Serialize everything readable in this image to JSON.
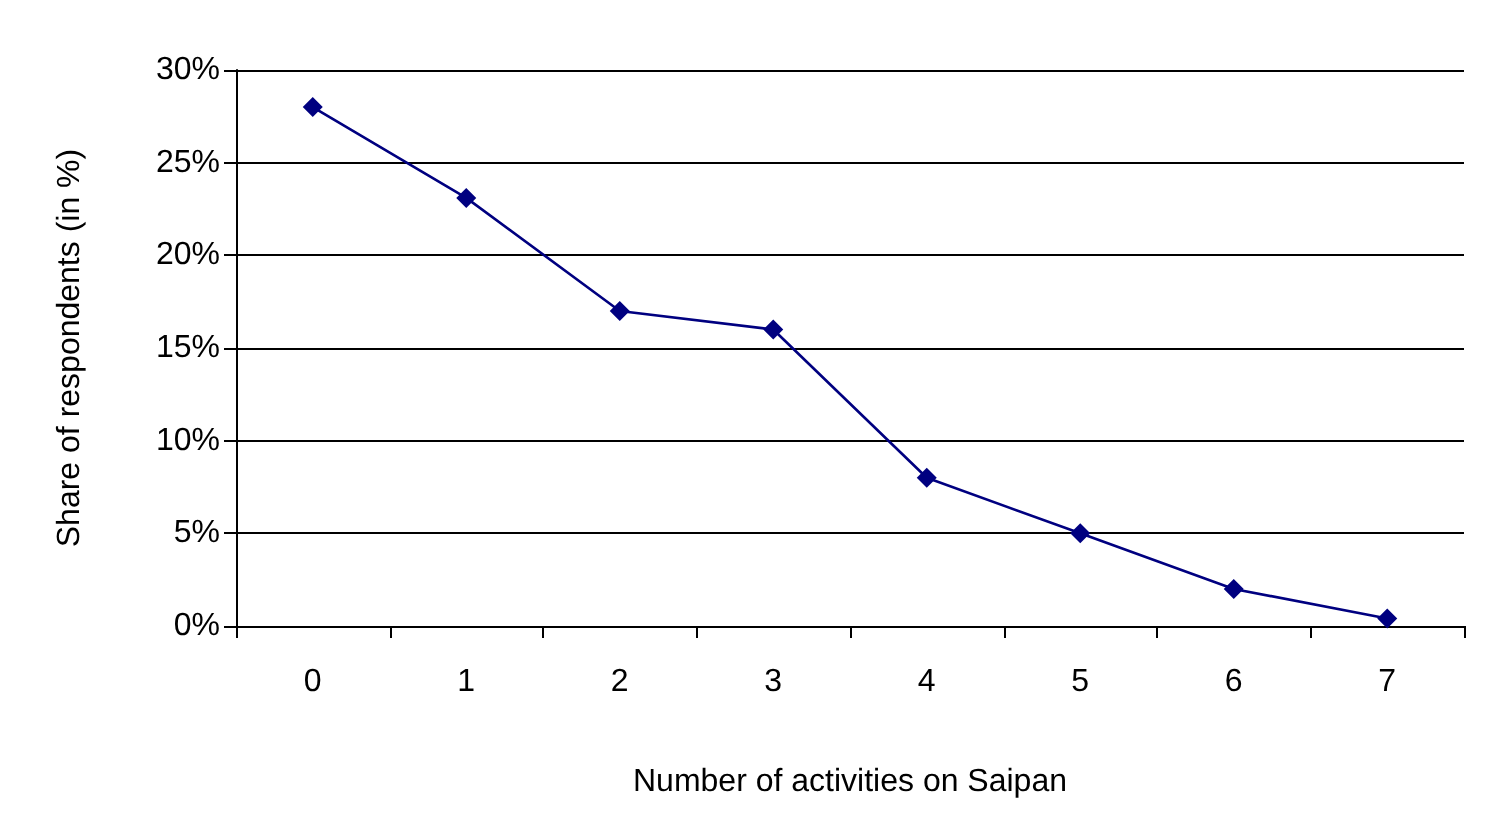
{
  "chart_data": {
    "type": "line",
    "xlabel": "Number of activities on Saipan",
    "ylabel": "Share of respondents (in %)",
    "categories": [
      "0",
      "1",
      "2",
      "3",
      "4",
      "5",
      "6",
      "7"
    ],
    "series": [
      {
        "color": "#000080",
        "values": [
          28,
          23.1,
          17,
          16,
          8,
          5,
          2,
          0.4
        ]
      }
    ],
    "ylim": [
      0,
      30
    ],
    "yticks": [
      {
        "value": 0,
        "label": "0%"
      },
      {
        "value": 5,
        "label": "5%"
      },
      {
        "value": 10,
        "label": "10%"
      },
      {
        "value": 15,
        "label": "15%"
      },
      {
        "value": 20,
        "label": "20%"
      },
      {
        "value": 25,
        "label": "25%"
      },
      {
        "value": 30,
        "label": "30%"
      }
    ],
    "grid": "y",
    "marker": "diamond",
    "line_style": "solid"
  }
}
